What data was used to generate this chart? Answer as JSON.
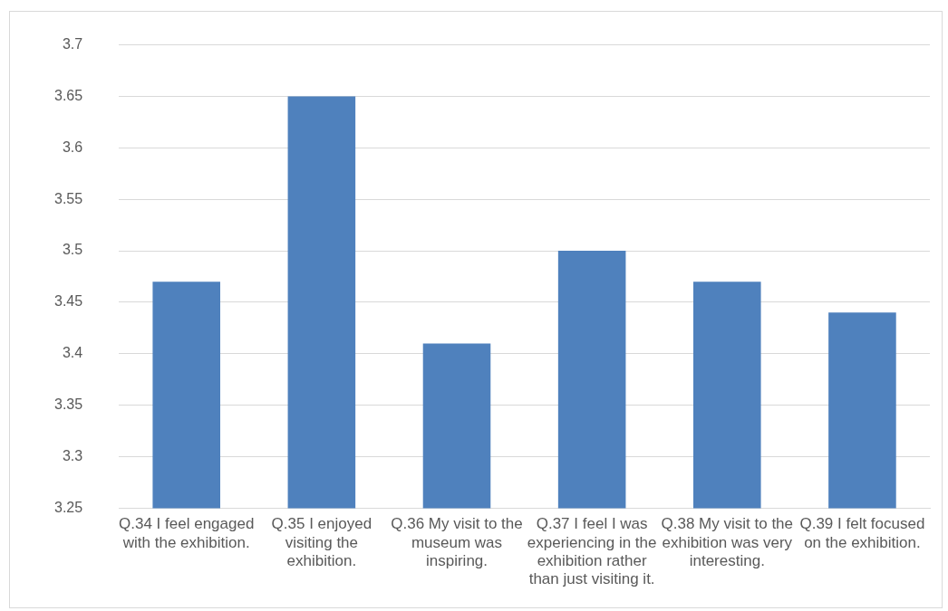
{
  "chart_data": {
    "type": "bar",
    "categories": [
      "Q.34 I feel engaged with the exhibition.",
      "Q.35 I enjoyed visiting the exhibition.",
      "Q.36 My visit to the museum was inspiring.",
      "Q.37 I feel I was experiencing in the exhibition rather than just visiting it.",
      "Q.38 My visit to the exhibition was very interesting.",
      "Q.39 I felt focused on the exhibition."
    ],
    "values": [
      3.47,
      3.65,
      3.41,
      3.5,
      3.47,
      3.44
    ],
    "color": "#4f81bd",
    "ylim": [
      3.25,
      3.7
    ],
    "yticks": [
      3.25,
      3.3,
      3.35,
      3.4,
      3.45,
      3.5,
      3.55,
      3.6,
      3.65,
      3.7
    ],
    "grid": "y",
    "legend": false
  }
}
